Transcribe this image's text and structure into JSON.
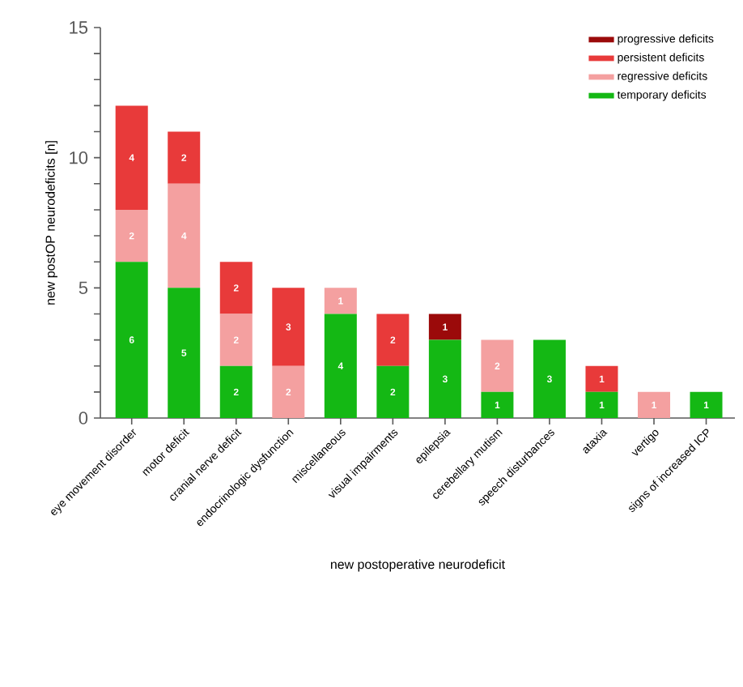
{
  "chart_data": {
    "type": "bar",
    "stacked": true,
    "xlabel": "new postoperative neurodeficit",
    "ylabel": "new postOP neurodeficits [n]",
    "categories": [
      "eye movement disorder",
      "motor deficit",
      "cranial nerve deficit",
      "endocrinologic dysfunction",
      "miscellaneous",
      "visual impairments",
      "epilepsia",
      "cerebellary mutism",
      "speech disturbances",
      "ataxia",
      "vertigo",
      "signs of increased ICP"
    ],
    "series": [
      {
        "name": "temporary deficits",
        "color": "#14b814",
        "values": [
          6,
          5,
          2,
          null,
          4,
          2,
          3,
          1,
          3,
          1,
          null,
          1
        ]
      },
      {
        "name": "regressive deficits",
        "color": "#f4a0a0",
        "values": [
          2,
          4,
          2,
          2,
          1,
          null,
          null,
          2,
          null,
          null,
          1,
          null
        ]
      },
      {
        "name": "persistent deficits",
        "color": "#e83a3a",
        "values": [
          4,
          2,
          2,
          3,
          null,
          2,
          null,
          null,
          null,
          1,
          null,
          null
        ]
      },
      {
        "name": "progressive deficits",
        "color": "#9b0a0a",
        "values": [
          null,
          null,
          null,
          null,
          null,
          null,
          1,
          null,
          null,
          null,
          null,
          null
        ]
      }
    ],
    "ylim": [
      0,
      15
    ],
    "yticks": [
      0,
      {
        "value": 1,
        "label": null
      },
      {
        "value": 2,
        "label": null
      },
      {
        "value": 3,
        "label": null
      },
      {
        "value": 4,
        "label": null
      },
      5,
      {
        "value": 6,
        "label": null
      },
      {
        "value": 7,
        "label": null
      },
      {
        "value": 8,
        "label": null
      },
      {
        "value": 9,
        "label": null
      },
      10,
      {
        "value": 11,
        "label": null
      },
      {
        "value": 12,
        "label": null
      },
      {
        "value": 13,
        "label": null
      },
      {
        "value": 14,
        "label": null
      },
      15
    ],
    "data_labels": true,
    "legend": "top right",
    "grid": false
  }
}
